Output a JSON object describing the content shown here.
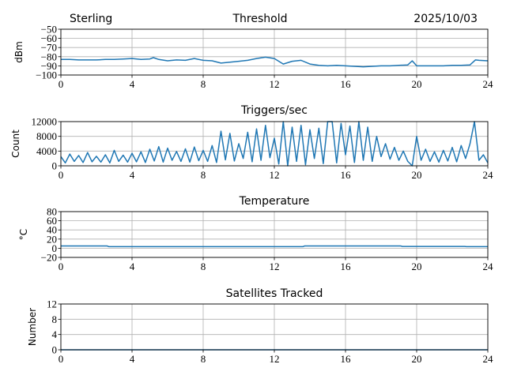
{
  "header": {
    "station": "Sterling",
    "date": "2025/10/03"
  },
  "chart_data": [
    {
      "type": "line",
      "title": "Threshold",
      "xlabel": "",
      "ylabel": "dBm",
      "xlim": [
        0,
        24
      ],
      "ylim": [
        -100,
        -50
      ],
      "xticks": [
        0,
        4,
        8,
        12,
        16,
        20,
        24
      ],
      "yticks": [
        -100,
        -90,
        -80,
        -70,
        -60,
        -50
      ],
      "ytick_labels": [
        "−100",
        "−90",
        "−80",
        "−70",
        "−60",
        "−50"
      ],
      "grid": true,
      "x": [
        0,
        0.5,
        1,
        1.5,
        2,
        2.5,
        3,
        3.5,
        4,
        4.5,
        5,
        5.2,
        5.5,
        6,
        6.5,
        7,
        7.5,
        8,
        8.5,
        9,
        9.5,
        10,
        10.5,
        11,
        11.5,
        12,
        12.5,
        13,
        13.5,
        14,
        14.5,
        15,
        15.5,
        16,
        16.5,
        17,
        17.5,
        18,
        18.5,
        19,
        19.5,
        19.75,
        20,
        20.5,
        21,
        21.5,
        22,
        22.5,
        23,
        23.3,
        23.5,
        24
      ],
      "y": [
        -83,
        -83,
        -83.5,
        -83.5,
        -83.5,
        -83,
        -83,
        -82.5,
        -82,
        -83,
        -82.5,
        -81,
        -83,
        -84.5,
        -83.5,
        -84,
        -82,
        -84,
        -84.5,
        -87,
        -86,
        -85,
        -84,
        -82,
        -80.5,
        -82,
        -88,
        -85,
        -84,
        -88,
        -89.5,
        -90,
        -89.5,
        -90,
        -90.5,
        -91,
        -90.5,
        -90,
        -90,
        -89.5,
        -89,
        -84.5,
        -90,
        -90,
        -90,
        -90,
        -89.5,
        -89.5,
        -89,
        -83.5,
        -84,
        -84.5
      ]
    },
    {
      "type": "line",
      "title": "Triggers/sec",
      "xlabel": "",
      "ylabel": "Count",
      "xlim": [
        0,
        24
      ],
      "ylim": [
        0,
        12000
      ],
      "xticks": [
        0,
        4,
        8,
        12,
        16,
        20,
        24
      ],
      "yticks": [
        0,
        4000,
        8000,
        12000
      ],
      "ytick_labels": [
        "0",
        "4000",
        "8000",
        "12000"
      ],
      "grid": true,
      "x_step": 0.25,
      "y": [
        2500,
        800,
        3200,
        1200,
        2800,
        900,
        3600,
        1100,
        2600,
        1000,
        3000,
        800,
        4200,
        1200,
        2900,
        1000,
        3400,
        1100,
        3800,
        900,
        4500,
        1300,
        5200,
        1000,
        4800,
        1500,
        3900,
        1200,
        4600,
        1000,
        5100,
        1400,
        4200,
        1200,
        5500,
        900,
        9400,
        1600,
        8800,
        1300,
        6000,
        2000,
        9100,
        1100,
        10000,
        1500,
        11000,
        2200,
        7500,
        500,
        12000,
        0,
        10500,
        1200,
        11000,
        300,
        9800,
        2000,
        10200,
        600,
        12000,
        12000,
        800,
        11500,
        3000,
        10800,
        900,
        12000,
        1500,
        10500,
        1200,
        8000,
        2500,
        6000,
        1800,
        5000,
        1500,
        4000,
        1200,
        0,
        8000,
        1500,
        4500,
        1200,
        3800,
        1000,
        4200,
        1300,
        5000,
        1100,
        5500,
        2000,
        6000,
        12000,
        1500,
        3000,
        800
      ]
    },
    {
      "type": "line",
      "title": "Temperature",
      "xlabel": "",
      "ylabel": "°C",
      "xlim": [
        0,
        24
      ],
      "ylim": [
        -20,
        80
      ],
      "xticks": [
        0,
        4,
        8,
        12,
        16,
        20,
        24
      ],
      "yticks": [
        -20,
        0,
        20,
        40,
        60,
        80
      ],
      "ytick_labels": [
        "−20",
        "0",
        "20",
        "40",
        "60",
        "80"
      ],
      "grid": true,
      "x": [
        0,
        2.6,
        2.7,
        13.6,
        13.7,
        19.1,
        19.2,
        22.7,
        22.8,
        24
      ],
      "y": [
        5,
        5,
        3.5,
        3.5,
        5,
        5,
        4,
        4,
        3.5,
        3.5
      ]
    },
    {
      "type": "line",
      "title": "Satellites Tracked",
      "xlabel": "",
      "ylabel": "Number",
      "xlim": [
        0,
        24
      ],
      "ylim": [
        0,
        12
      ],
      "xticks": [
        0,
        4,
        8,
        12,
        16,
        20,
        24
      ],
      "yticks": [
        0,
        4,
        8,
        12
      ],
      "ytick_labels": [
        "0",
        "4",
        "8",
        "12"
      ],
      "grid": true,
      "x": [
        0,
        24
      ],
      "y": [
        0,
        0
      ]
    }
  ]
}
